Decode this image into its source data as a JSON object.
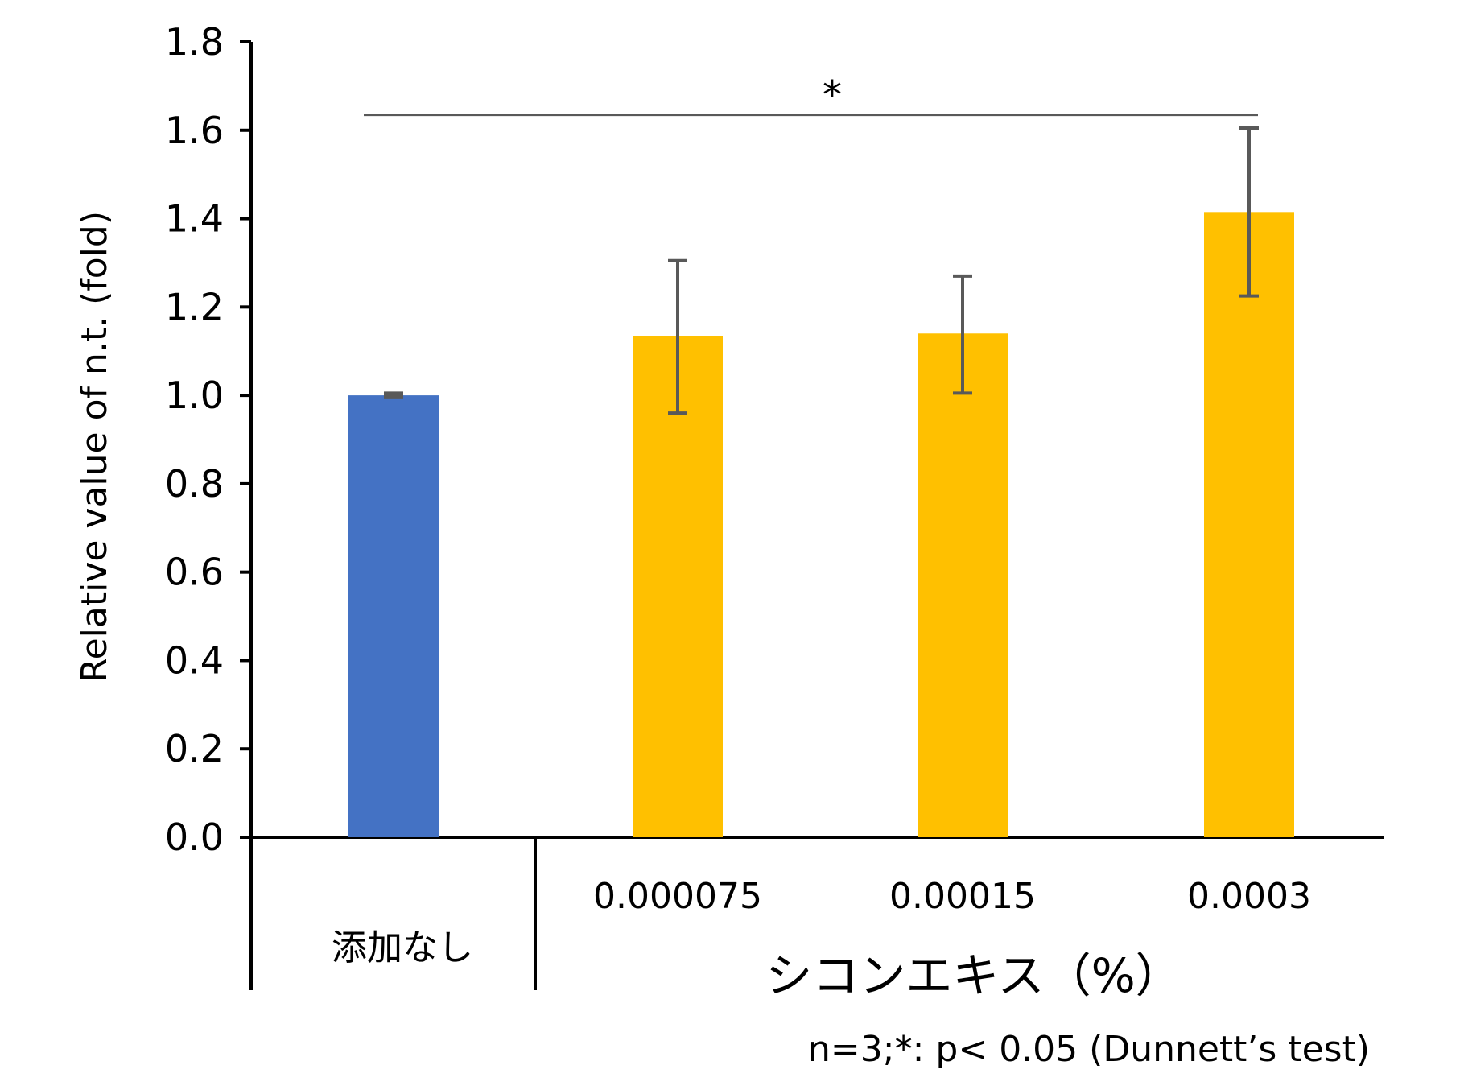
{
  "chart_data": {
    "type": "bar",
    "ylabel": "Relative value of n.t. (fold)",
    "xlabel": "",
    "ylim": [
      0,
      1.8
    ],
    "y_tick_labels": [
      "0.0",
      "0.2",
      "0.4",
      "0.6",
      "0.8",
      "1.0",
      "1.2",
      "1.4",
      "1.6",
      "1.8"
    ],
    "categories": [
      "添加なし",
      "0.000075",
      "0.00015",
      "0.0003"
    ],
    "values": [
      1.0,
      1.135,
      1.14,
      1.415
    ],
    "error_low": [
      0.995,
      0.96,
      1.005,
      1.225
    ],
    "error_high": [
      1.005,
      1.305,
      1.27,
      1.605
    ],
    "bar_colors": [
      "#4472C4",
      "#FFC000",
      "#FFC000",
      "#FFC000"
    ],
    "error_bar_color": "#595959",
    "group_label": "シコンエキス（%）",
    "group_categories": [
      1,
      3
    ],
    "significance": {
      "from": 0,
      "to": 3,
      "y": 1.635,
      "label": "*"
    },
    "footnote": "n=3;*: p< 0.05 (Dunnett’s test)",
    "grid": false
  }
}
